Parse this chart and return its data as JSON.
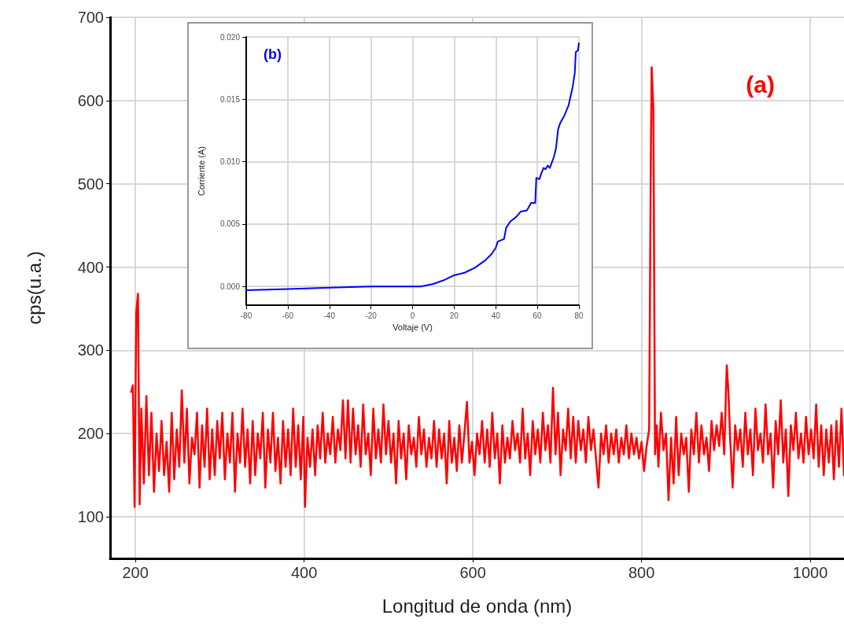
{
  "chart_data": [
    {
      "type": "line",
      "xlabel": "Longitud de onda (nm)",
      "ylabel": "cps(u.a.)",
      "annotations": [
        "(a)"
      ],
      "xlim": [
        170,
        1040
      ],
      "xticks": [
        200,
        400,
        600,
        800,
        1000
      ],
      "ylim": [
        50,
        700
      ],
      "yticks": [
        100,
        200,
        300,
        400,
        500,
        600,
        700
      ],
      "grid": true,
      "marker": "none",
      "line_style": "solid",
      "series": [
        {
          "color": "#ff0000",
          "x": [
            195,
            197,
            199,
            201,
            203,
            205,
            207,
            210,
            213,
            216,
            219,
            222,
            225,
            228,
            231,
            234,
            237,
            240,
            243,
            246,
            249,
            252,
            255,
            258,
            261,
            264,
            267,
            270,
            273,
            276,
            279,
            282,
            285,
            288,
            291,
            294,
            297,
            300,
            303,
            306,
            309,
            312,
            315,
            318,
            321,
            324,
            327,
            330,
            333,
            336,
            339,
            342,
            345,
            348,
            351,
            354,
            357,
            360,
            363,
            366,
            369,
            372,
            375,
            378,
            381,
            384,
            387,
            390,
            393,
            396,
            399,
            401,
            404,
            407,
            410,
            413,
            416,
            419,
            422,
            425,
            428,
            431,
            434,
            437,
            440,
            443,
            446,
            449,
            452,
            455,
            458,
            461,
            464,
            467,
            470,
            473,
            476,
            479,
            482,
            485,
            488,
            491,
            494,
            497,
            500,
            503,
            506,
            509,
            512,
            515,
            518,
            521,
            524,
            527,
            530,
            533,
            536,
            539,
            542,
            545,
            548,
            551,
            554,
            557,
            560,
            563,
            566,
            569,
            572,
            575,
            578,
            581,
            584,
            587,
            590,
            593,
            596,
            599,
            602,
            605,
            608,
            611,
            614,
            617,
            620,
            623,
            626,
            629,
            632,
            635,
            638,
            641,
            644,
            647,
            650,
            653,
            656,
            659,
            662,
            665,
            668,
            671,
            674,
            677,
            680,
            683,
            686,
            689,
            692,
            695,
            698,
            701,
            704,
            707,
            710,
            713,
            716,
            719,
            722,
            725,
            728,
            731,
            734,
            737,
            740,
            743,
            746,
            749,
            752,
            755,
            758,
            761,
            764,
            767,
            770,
            773,
            776,
            779,
            782,
            785,
            788,
            791,
            794,
            797,
            800,
            803,
            806,
            809,
            811,
            812,
            814,
            816,
            818,
            820,
            823,
            826,
            829,
            832,
            835,
            838,
            841,
            844,
            847,
            850,
            853,
            856,
            859,
            862,
            865,
            868,
            871,
            874,
            877,
            880,
            883,
            886,
            889,
            892,
            895,
            898,
            901,
            903,
            905,
            908,
            911,
            914,
            917,
            920,
            923,
            926,
            929,
            932,
            935,
            938,
            941,
            944,
            947,
            950,
            953,
            956,
            959,
            962,
            965,
            968,
            971,
            974,
            977,
            980,
            983,
            986,
            989,
            992,
            995,
            998,
            1001,
            1004,
            1007,
            1010,
            1013,
            1016,
            1019,
            1022,
            1025,
            1028,
            1031,
            1034,
            1037,
            1040
          ],
          "values": [
            250,
            258,
            112,
            345,
            368,
            115,
            230,
            140,
            245,
            150,
            225,
            130,
            200,
            155,
            215,
            150,
            190,
            130,
            225,
            145,
            205,
            160,
            252,
            165,
            230,
            140,
            195,
            175,
            225,
            135,
            210,
            160,
            230,
            145,
            205,
            150,
            215,
            170,
            225,
            145,
            200,
            165,
            225,
            130,
            200,
            165,
            230,
            160,
            205,
            140,
            215,
            150,
            200,
            170,
            225,
            135,
            205,
            165,
            225,
            155,
            195,
            140,
            215,
            160,
            205,
            150,
            230,
            160,
            210,
            145,
            220,
            112,
            195,
            160,
            205,
            150,
            210,
            170,
            225,
            165,
            200,
            175,
            220,
            165,
            205,
            180,
            240,
            170,
            240,
            165,
            230,
            175,
            210,
            160,
            235,
            175,
            200,
            150,
            230,
            170,
            205,
            165,
            235,
            175,
            215,
            165,
            200,
            140,
            215,
            170,
            200,
            145,
            210,
            175,
            195,
            160,
            220,
            175,
            205,
            160,
            195,
            170,
            215,
            160,
            205,
            170,
            200,
            140,
            215,
            165,
            195,
            155,
            210,
            165,
            200,
            238,
            165,
            190,
            150,
            200,
            175,
            215,
            165,
            205,
            160,
            225,
            170,
            200,
            140,
            210,
            165,
            195,
            170,
            215,
            180,
            200,
            165,
            230,
            170,
            200,
            150,
            215,
            175,
            205,
            165,
            225,
            180,
            210,
            165,
            255,
            175,
            225,
            150,
            205,
            180,
            230,
            170,
            220,
            165,
            215,
            180,
            205,
            165,
            220,
            180,
            205,
            170,
            135,
            200,
            175,
            210,
            165,
            200,
            175,
            205,
            165,
            195,
            175,
            210,
            170,
            200,
            175,
            195,
            170,
            190,
            155,
            185,
            205,
            530,
            640,
            590,
            175,
            210,
            160,
            225,
            180,
            200,
            120,
            195,
            140,
            220,
            150,
            200,
            175,
            195,
            130,
            205,
            175,
            225,
            165,
            210,
            175,
            195,
            155,
            215,
            180,
            210,
            185,
            225,
            175,
            282,
            250,
            195,
            135,
            210,
            180,
            205,
            160,
            225,
            175,
            205,
            150,
            230,
            180,
            200,
            165,
            235,
            175,
            200,
            135,
            215,
            175,
            240,
            165,
            205,
            125,
            210,
            180,
            225,
            170,
            200,
            165,
            220,
            175,
            205,
            170,
            235,
            160,
            210,
            150,
            205,
            165,
            210,
            145,
            215,
            160,
            230,
            150
          ]
        }
      ]
    },
    {
      "type": "line",
      "xlabel": "Voltaje (V)",
      "ylabel": "Corriente (A)",
      "annotations": [
        "(b)"
      ],
      "xlim": [
        -80,
        80
      ],
      "xticks": [
        -80,
        -60,
        -40,
        -20,
        0,
        20,
        40,
        60,
        80
      ],
      "ylim": [
        -0.0015,
        0.02
      ],
      "yticks": [
        {
          "value": 0,
          "label": "0.000"
        },
        {
          "value": 0.005,
          "label": "0.005"
        },
        {
          "value": 0.01,
          "label": "0.010"
        },
        {
          "value": 0.015,
          "label": "0.015"
        },
        {
          "value": 0.02,
          "label": "0.020"
        }
      ],
      "grid": true,
      "marker": "none",
      "line_style": "solid",
      "series": [
        {
          "color": "#0000ff",
          "x": [
            -80,
            -60,
            -40,
            -20,
            0,
            4,
            10,
            15,
            20,
            25,
            30,
            35,
            38,
            40,
            41,
            44,
            45,
            47,
            50,
            52,
            55,
            57,
            59,
            59.5,
            61,
            62,
            63,
            64,
            65,
            66,
            68,
            69,
            70,
            71,
            73,
            75,
            77,
            78,
            78.5,
            79.5,
            80
          ],
          "values": [
            -0.0003,
            -0.0002,
            -0.0001,
            0,
            0,
            0,
            0.0002,
            0.0005,
            0.0009,
            0.0011,
            0.0015,
            0.0021,
            0.0026,
            0.0031,
            0.0036,
            0.0038,
            0.0047,
            0.0052,
            0.0056,
            0.006,
            0.0061,
            0.0067,
            0.0067,
            0.0087,
            0.0086,
            0.0091,
            0.0095,
            0.0094,
            0.0097,
            0.0095,
            0.0104,
            0.0111,
            0.0126,
            0.0131,
            0.0137,
            0.0145,
            0.016,
            0.0171,
            0.0188,
            0.0189,
            0.0195
          ]
        }
      ]
    }
  ]
}
